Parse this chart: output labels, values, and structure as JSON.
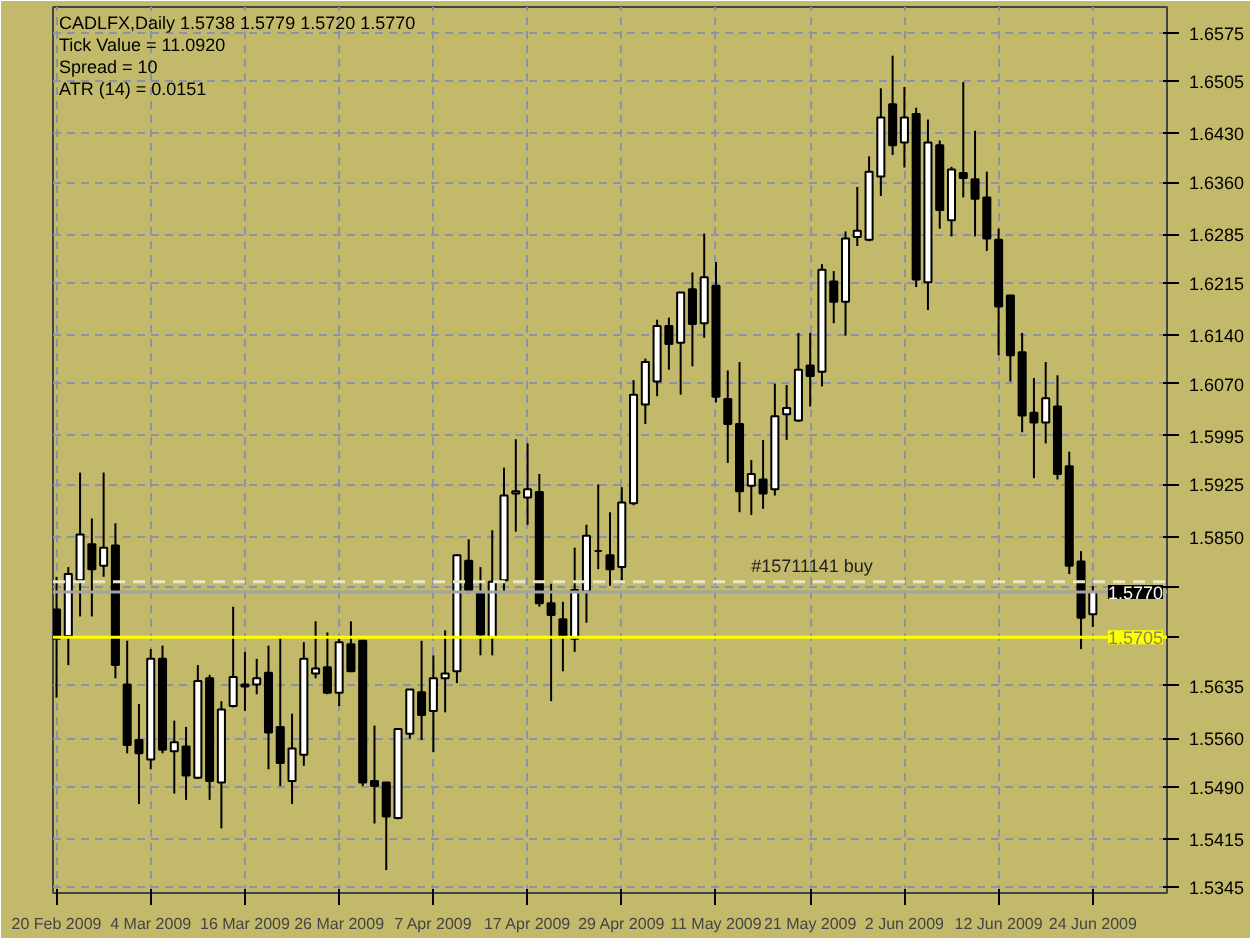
{
  "chart_data": {
    "type": "candlestick",
    "title": "CADLFX,Daily  1.5738 1.5779 1.5720 1.5770",
    "annotations": [
      "Tick Value = 11.0920",
      "Spread = 10",
      "ATR (14) = 0.0151"
    ],
    "categories": [
      "20 Feb 2009",
      null,
      null,
      null,
      null,
      null,
      null,
      null,
      "4 Mar 2009",
      null,
      null,
      null,
      null,
      null,
      null,
      null,
      "16 Mar 2009",
      null,
      null,
      null,
      null,
      null,
      null,
      null,
      "26 Mar 2009",
      null,
      null,
      null,
      null,
      null,
      null,
      null,
      "7 Apr 2009",
      null,
      null,
      null,
      null,
      null,
      null,
      null,
      "17 Apr 2009",
      null,
      null,
      null,
      null,
      null,
      null,
      null,
      "29 Apr 2009",
      null,
      null,
      null,
      null,
      null,
      null,
      null,
      "11 May 2009",
      null,
      null,
      null,
      null,
      null,
      null,
      null,
      "21 May 2009",
      null,
      null,
      null,
      null,
      null,
      null,
      null,
      "2 Jun 2009",
      null,
      null,
      null,
      null,
      null,
      null,
      null,
      "12 Jun 2009",
      null,
      null,
      null,
      null,
      null,
      null,
      null,
      "24 Jun 2009"
    ],
    "ohlc": [
      [
        1.5745,
        1.5792,
        1.5618,
        1.5703
      ],
      [
        1.5707,
        1.5806,
        1.5665,
        1.5796
      ],
      [
        1.5787,
        1.5942,
        1.5735,
        1.5853
      ],
      [
        1.5839,
        1.5876,
        1.5735,
        1.5803
      ],
      [
        1.5808,
        1.5942,
        1.5792,
        1.5834
      ],
      [
        1.5837,
        1.5869,
        1.5646,
        1.5665
      ],
      [
        1.5637,
        1.57,
        1.5538,
        1.555
      ],
      [
        1.5557,
        1.5609,
        1.5465,
        1.5538
      ],
      [
        1.5529,
        1.5688,
        1.5515,
        1.5674
      ],
      [
        1.5674,
        1.5693,
        1.5538,
        1.5543
      ],
      [
        1.5541,
        1.5585,
        1.548,
        1.5554
      ],
      [
        1.5548,
        1.5576,
        1.5471,
        1.5506
      ],
      [
        1.5503,
        1.5665,
        1.5501,
        1.5642
      ],
      [
        1.5646,
        1.5651,
        1.5471,
        1.5498
      ],
      [
        1.5496,
        1.5613,
        1.543,
        1.5601
      ],
      [
        1.5606,
        1.5749,
        1.5604,
        1.5648
      ],
      [
        1.5637,
        1.5684,
        1.5599,
        1.5634
      ],
      [
        1.5637,
        1.5674,
        1.5623,
        1.5646
      ],
      [
        1.5654,
        1.5693,
        1.5515,
        1.5568
      ],
      [
        1.5576,
        1.5707,
        1.5491,
        1.5524
      ],
      [
        1.5498,
        1.5595,
        1.5465,
        1.5545
      ],
      [
        1.5536,
        1.5698,
        1.552,
        1.5674
      ],
      [
        1.5653,
        1.5728,
        1.5646,
        1.566
      ],
      [
        1.5662,
        1.5712,
        1.5623,
        1.5625
      ],
      [
        1.5625,
        1.5703,
        1.5606,
        1.5698
      ],
      [
        1.5695,
        1.5728,
        1.5656,
        1.5656
      ],
      [
        1.57,
        1.57,
        1.5491,
        1.5496
      ],
      [
        1.5498,
        1.5578,
        1.5437,
        1.5491
      ],
      [
        1.5496,
        1.5496,
        1.537,
        1.5447
      ],
      [
        1.5445,
        1.5573,
        1.5443,
        1.5573
      ],
      [
        1.5566,
        1.563,
        1.5559,
        1.563
      ],
      [
        1.5626,
        1.57,
        1.5557,
        1.5593
      ],
      [
        1.5599,
        1.5679,
        1.554,
        1.5646
      ],
      [
        1.5646,
        1.5715,
        1.5597,
        1.5653
      ],
      [
        1.5656,
        1.5824,
        1.5639,
        1.5823
      ],
      [
        1.5815,
        1.5846,
        1.5768,
        1.5773
      ],
      [
        1.5768,
        1.5806,
        1.5679,
        1.5709
      ],
      [
        1.5705,
        1.5859,
        1.5679,
        1.5785
      ],
      [
        1.5787,
        1.5949,
        1.5771,
        1.5909
      ],
      [
        1.5912,
        1.599,
        1.5857,
        1.5915
      ],
      [
        1.5906,
        1.5984,
        1.5867,
        1.5918
      ],
      [
        1.5914,
        1.594,
        1.5749,
        1.5754
      ],
      [
        1.5754,
        1.5782,
        1.5613,
        1.5737
      ],
      [
        1.5731,
        1.5756,
        1.5656,
        1.5705
      ],
      [
        1.5703,
        1.5834,
        1.5684,
        1.5773
      ],
      [
        1.5771,
        1.5867,
        1.5726,
        1.5851
      ],
      [
        1.5829,
        1.5925,
        1.5803,
        1.5829
      ],
      [
        1.5823,
        1.5885,
        1.5779,
        1.5803
      ],
      [
        1.5806,
        1.5921,
        1.5784,
        1.5899
      ],
      [
        1.5898,
        1.6075,
        1.5895,
        1.6054
      ],
      [
        1.604,
        1.6106,
        1.6012,
        1.6101
      ],
      [
        1.6073,
        1.6162,
        1.6052,
        1.6153
      ],
      [
        1.6153,
        1.6165,
        1.609,
        1.6127
      ],
      [
        1.6129,
        1.6201,
        1.6054,
        1.6201
      ],
      [
        1.6206,
        1.623,
        1.6095,
        1.6156
      ],
      [
        1.6157,
        1.6286,
        1.6136,
        1.6223
      ],
      [
        1.6211,
        1.6245,
        1.6043,
        1.6051
      ],
      [
        1.6048,
        1.6089,
        1.5956,
        1.6012
      ],
      [
        1.6012,
        1.6101,
        1.5885,
        1.5915
      ],
      [
        1.5923,
        1.596,
        1.5881,
        1.594
      ],
      [
        1.5932,
        1.5989,
        1.589,
        1.5912
      ],
      [
        1.5918,
        1.607,
        1.5909,
        1.6023
      ],
      [
        1.6026,
        1.6068,
        1.5989,
        1.6035
      ],
      [
        1.6017,
        1.6143,
        1.6015,
        1.609
      ],
      [
        1.6096,
        1.6143,
        1.6037,
        1.6081
      ],
      [
        1.6087,
        1.6242,
        1.6066,
        1.6234
      ],
      [
        1.6217,
        1.6232,
        1.6157,
        1.6188
      ],
      [
        1.6188,
        1.6289,
        1.6139,
        1.6279
      ],
      [
        1.6281,
        1.6353,
        1.6268,
        1.629
      ],
      [
        1.6277,
        1.6397,
        1.6275,
        1.6375
      ],
      [
        1.6368,
        1.6495,
        1.634,
        1.6453
      ],
      [
        1.6472,
        1.6542,
        1.6399,
        1.6413
      ],
      [
        1.6417,
        1.6497,
        1.6381,
        1.6453
      ],
      [
        1.6458,
        1.6467,
        1.6209,
        1.622
      ],
      [
        1.6216,
        1.645,
        1.6176,
        1.6417
      ],
      [
        1.6413,
        1.642,
        1.6293,
        1.632
      ],
      [
        1.6305,
        1.6382,
        1.6282,
        1.6378
      ],
      [
        1.6373,
        1.6504,
        1.6338,
        1.6366
      ],
      [
        1.6364,
        1.6434,
        1.6282,
        1.6336
      ],
      [
        1.6338,
        1.6375,
        1.6261,
        1.6279
      ],
      [
        1.6277,
        1.6293,
        1.6111,
        1.6181
      ],
      [
        1.6197,
        1.6197,
        1.6073,
        1.6111
      ],
      [
        1.6115,
        1.6143,
        1.6,
        1.6024
      ],
      [
        1.6028,
        1.6078,
        1.5934,
        1.6014
      ],
      [
        1.6014,
        1.6101,
        1.5984,
        1.6049
      ],
      [
        1.6037,
        1.6082,
        1.5932,
        1.594
      ],
      [
        1.5951,
        1.5972,
        1.5796,
        1.5808
      ],
      [
        1.5814,
        1.5829,
        1.5688,
        1.5733
      ],
      [
        1.5738,
        1.5779,
        1.572,
        1.577
      ]
    ],
    "ylim": [
      1.5337,
      1.6612
    ],
    "yticks": [
      {
        "value": 1.5345,
        "label": "1.5345"
      },
      {
        "value": 1.5415,
        "label": "1.5415"
      },
      {
        "value": 1.549,
        "label": "1.5490"
      },
      {
        "value": 1.556,
        "label": "1.5560"
      },
      {
        "value": 1.5635,
        "label": "1.5635"
      },
      {
        "value": 1.5705,
        "label": null
      },
      {
        "value": 1.5777,
        "label": null
      },
      {
        "value": 1.585,
        "label": "1.5850"
      },
      {
        "value": 1.5925,
        "label": "1.5925"
      },
      {
        "value": 1.5995,
        "label": "1.5995"
      },
      {
        "value": 1.607,
        "label": "1.6070"
      },
      {
        "value": 1.614,
        "label": "1.6140"
      },
      {
        "value": 1.6215,
        "label": "1.6215"
      },
      {
        "value": 1.6285,
        "label": "1.6285"
      },
      {
        "value": 1.636,
        "label": "1.6360"
      },
      {
        "value": 1.643,
        "label": "1.6430"
      },
      {
        "value": 1.6505,
        "label": "1.6505"
      },
      {
        "value": 1.6575,
        "label": "1.6575"
      }
    ],
    "ref_lines": [
      {
        "axis": "y",
        "value": 1.5785,
        "label": "#15711141 buy",
        "color": "#e8e8c8",
        "line_style": "dashed"
      },
      {
        "axis": "y",
        "value": 1.577,
        "label": "1.5770",
        "color": "#a0a4a8",
        "line_style": "solid"
      },
      {
        "axis": "y",
        "value": 1.5705,
        "label": "1.5705",
        "color": "#ffff00",
        "line_style": "solid"
      }
    ],
    "grid": true
  }
}
